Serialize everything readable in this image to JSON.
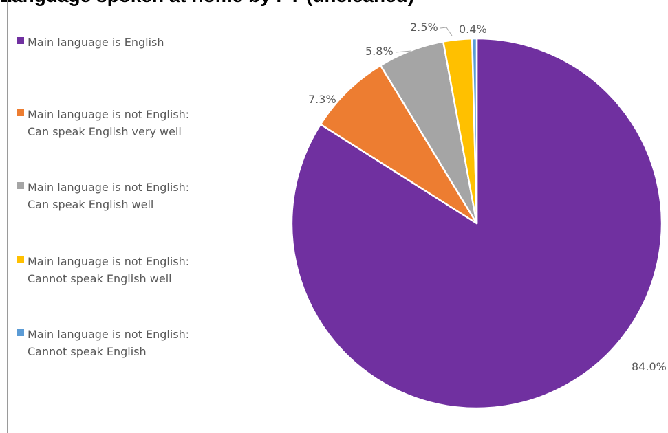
{
  "chart_data": {
    "type": "pie",
    "title": "Language spoken at home by PT (uncleaned)",
    "legend_position": "left",
    "slices": [
      {
        "label": "Main language is English",
        "lines": [
          "Main language is English"
        ],
        "value": 84.0,
        "value_label": "84.0%",
        "color": "#7030A0"
      },
      {
        "label": "Main language is not English: Can speak English very well",
        "lines": [
          "Main language is not English:",
          "Can speak English very well"
        ],
        "value": 7.3,
        "value_label": "7.3%",
        "color": "#ED7D31"
      },
      {
        "label": "Main language is not English: Can speak English well",
        "lines": [
          "Main language is not English:",
          "Can speak English well"
        ],
        "value": 5.8,
        "value_label": "5.8%",
        "color": "#A5A5A5"
      },
      {
        "label": "Main language is not English: Cannot speak English well",
        "lines": [
          "Main language is not English:",
          "Cannot speak English well"
        ],
        "value": 2.5,
        "value_label": "2.5%",
        "color": "#FFC000"
      },
      {
        "label": "Main language is not English: Cannot speak English",
        "lines": [
          "Main language is not English:",
          "Cannot speak English"
        ],
        "value": 0.4,
        "value_label": "0.4%",
        "color": "#5B9BD5"
      }
    ]
  }
}
